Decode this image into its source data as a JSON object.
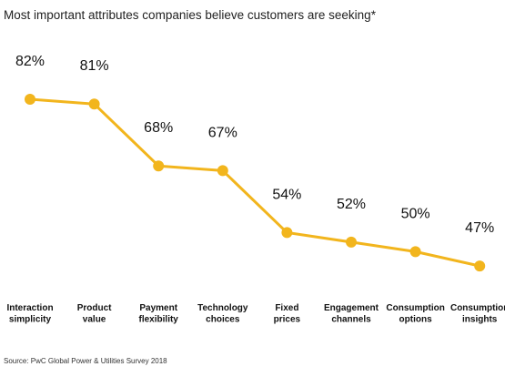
{
  "chart_data": {
    "type": "line",
    "title": "Most important attributes companies believe customers are seeking*",
    "categories": [
      [
        "Interaction",
        "simplicity"
      ],
      [
        "Product",
        "value"
      ],
      [
        "Payment",
        "flexibility"
      ],
      [
        "Technology",
        "choices"
      ],
      [
        "Fixed",
        "prices"
      ],
      [
        "Engagement",
        "channels"
      ],
      [
        "Consumption",
        "options"
      ],
      [
        "Consumption",
        "insights"
      ]
    ],
    "values": [
      82,
      81,
      68,
      67,
      54,
      52,
      50,
      47
    ],
    "data_labels": [
      "82%",
      "81%",
      "68%",
      "67%",
      "54%",
      "52%",
      "50%",
      "47%"
    ],
    "xlabel": "",
    "ylabel": "",
    "grid": false,
    "color": "#F2B51D"
  },
  "source": "Source: PwC Global Power & Utilities Survey 2018"
}
